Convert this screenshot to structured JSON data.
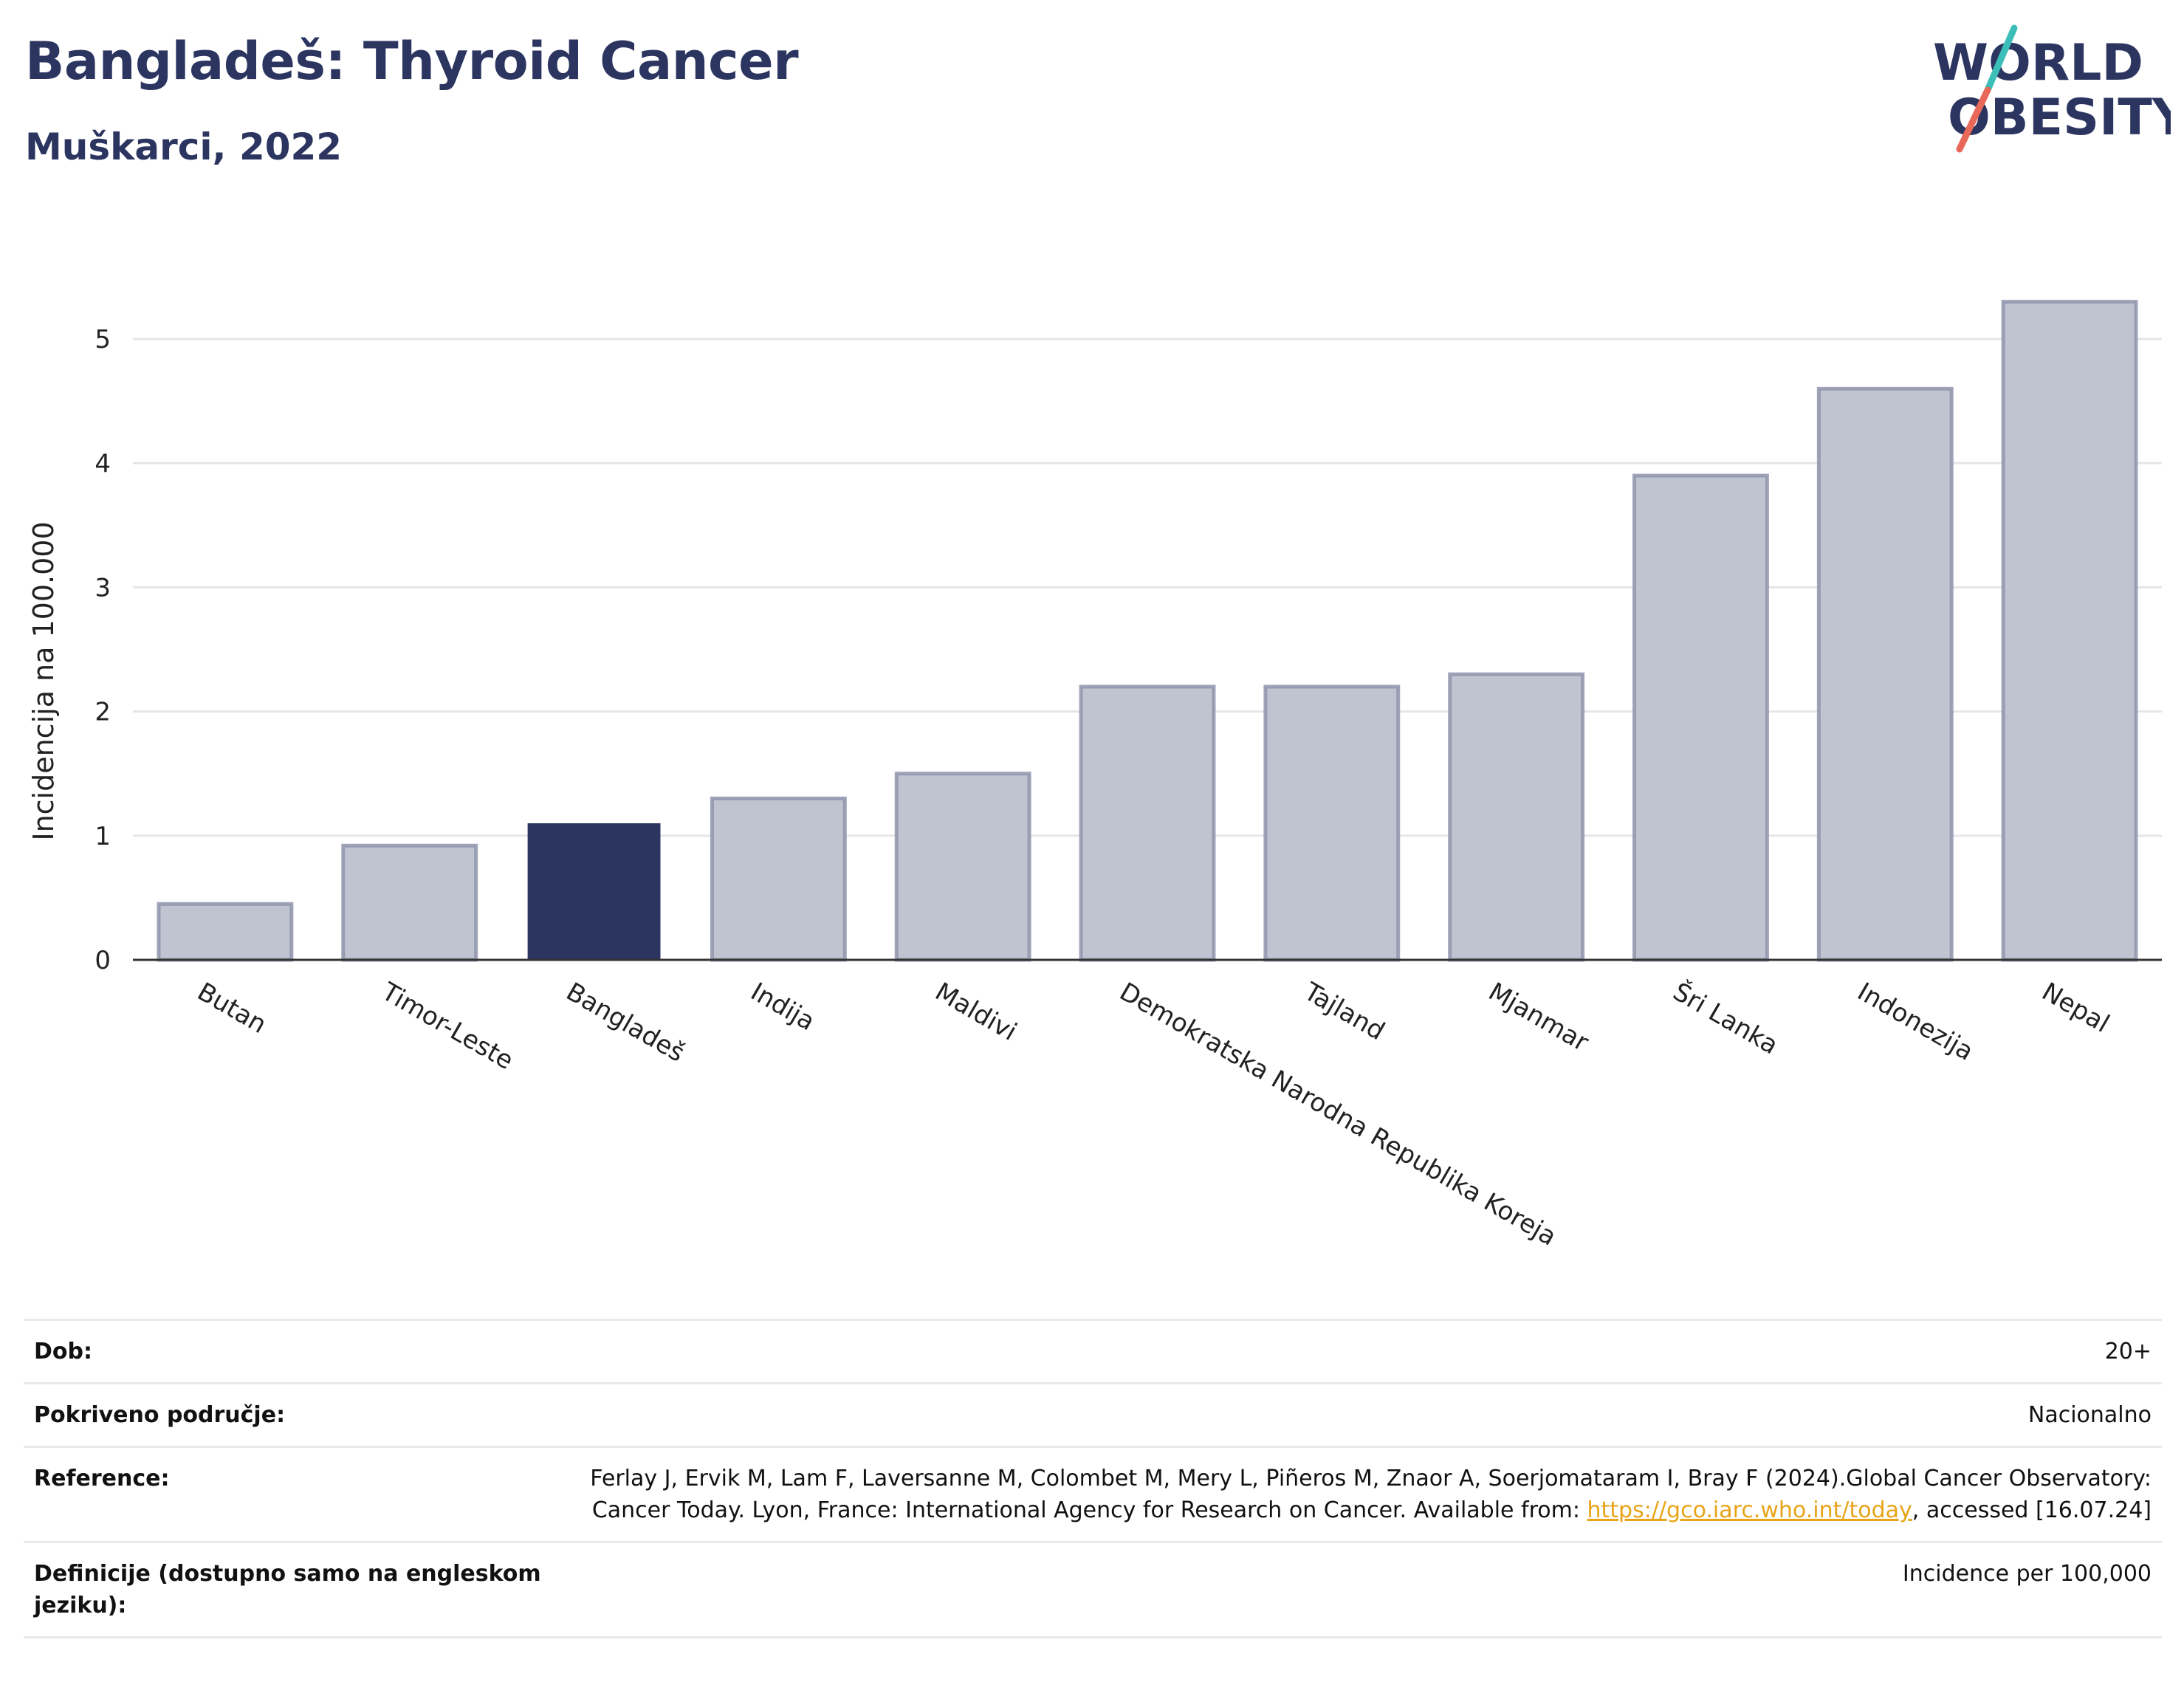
{
  "header": {
    "title": "Bangladeš: Thyroid Cancer",
    "subtitle": "Muškarci, 2022"
  },
  "logo": {
    "line1": "WORLD",
    "line2": "OBESITY",
    "slash_colors": [
      "#3bbfb8",
      "#e8685a"
    ]
  },
  "colors": {
    "highlight": "#2b3560",
    "bar_fill": "#c0c4d1",
    "bar_stroke": "#8e94ab",
    "grid": "#e6e6ea",
    "axis": "#333333"
  },
  "chart_data": {
    "type": "bar",
    "ylabel": "Incidencija na 100.000",
    "ylim": [
      0,
      5.5
    ],
    "yticks": [
      0,
      1,
      2,
      3,
      4,
      5
    ],
    "grid": true,
    "highlight": "Bangladeš",
    "categories": [
      "Butan",
      "Timor-Leste",
      "Bangladeš",
      "Indija",
      "Maldivi",
      "Demokratska Narodna Republika Koreja",
      "Tajland",
      "Mjanmar",
      "Šri Lanka",
      "Indonezija",
      "Nepal"
    ],
    "values": [
      0.45,
      0.92,
      1.1,
      1.3,
      1.5,
      2.2,
      2.2,
      2.3,
      3.9,
      4.6,
      5.3
    ]
  },
  "info": {
    "rows": [
      {
        "label": "Dob:",
        "value": "20+"
      },
      {
        "label": "Pokriveno područje:",
        "value": "Nacionalno"
      },
      {
        "label": "Reference:",
        "value_before": "Ferlay J, Ervik M, Lam F, Laversanne M, Colombet M, Mery L, Piñeros M, Znaor A, Soerjomataram I, Bray F (2024).Global Cancer Observatory: Cancer Today. Lyon, France: International Agency for Research on Cancer. Available from: ",
        "link": "https://gco.iarc.who.int/today",
        "value_after": ", accessed [16.07.24]"
      },
      {
        "label": "Definicije (dostupno samo na engleskom jeziku):",
        "value": "Incidence per 100,000"
      }
    ]
  }
}
